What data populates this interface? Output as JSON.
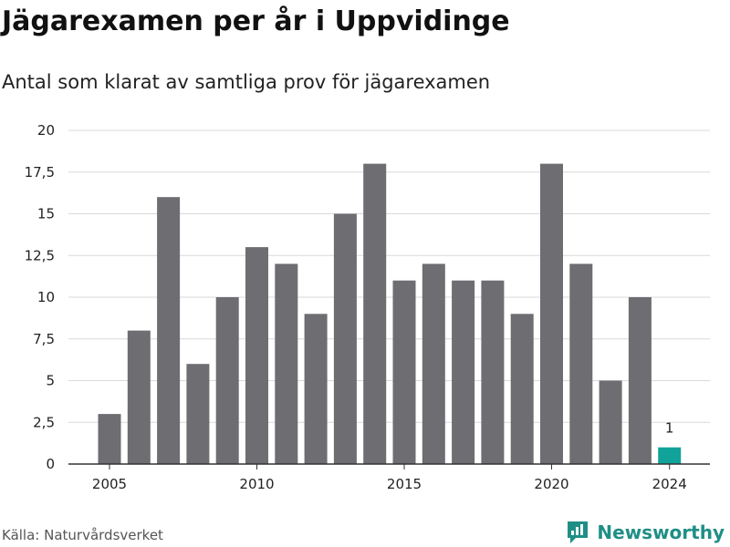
{
  "title": "Jägarexamen per år i Uppvidinge",
  "subtitle": "Antal som klarat av samtliga prov för jägarexamen",
  "source": "Källa: Naturvårdsverket",
  "brand": {
    "name": "Newsworthy",
    "icon": "newsworthy-logo-icon",
    "color": "#1f8f86"
  },
  "colors": {
    "bar": "#6d6d72",
    "highlight": "#11a39a",
    "grid": "#d9d9d9",
    "axis": "#333333"
  },
  "chart_data": {
    "type": "bar",
    "title": "Jägarexamen per år i Uppvidinge",
    "subtitle": "Antal som klarat av samtliga prov för jägarexamen",
    "categories": [
      "2005",
      "2006",
      "2007",
      "2008",
      "2009",
      "2010",
      "2011",
      "2012",
      "2013",
      "2014",
      "2015",
      "2016",
      "2017",
      "2018",
      "2019",
      "2020",
      "2021",
      "2022",
      "2023",
      "2024"
    ],
    "values": [
      3,
      8,
      16,
      6,
      10,
      13,
      12,
      9,
      15,
      18,
      11,
      12,
      11,
      11,
      9,
      18,
      12,
      5,
      10,
      1
    ],
    "highlight_index": 19,
    "data_labels": [
      {
        "category": "2024",
        "text": "1"
      }
    ],
    "x_tick_labels": [
      "2005",
      "2010",
      "2015",
      "2020",
      "2024"
    ],
    "y_ticks": [
      0,
      2.5,
      5,
      7.5,
      10,
      12.5,
      15,
      17.5,
      20
    ],
    "y_tick_labels": [
      "0",
      "2,5",
      "5",
      "7,5",
      "10",
      "12,5",
      "15",
      "17,5",
      "20"
    ],
    "ylim": [
      0,
      20
    ],
    "grid": true,
    "xlabel": "",
    "ylabel": ""
  }
}
